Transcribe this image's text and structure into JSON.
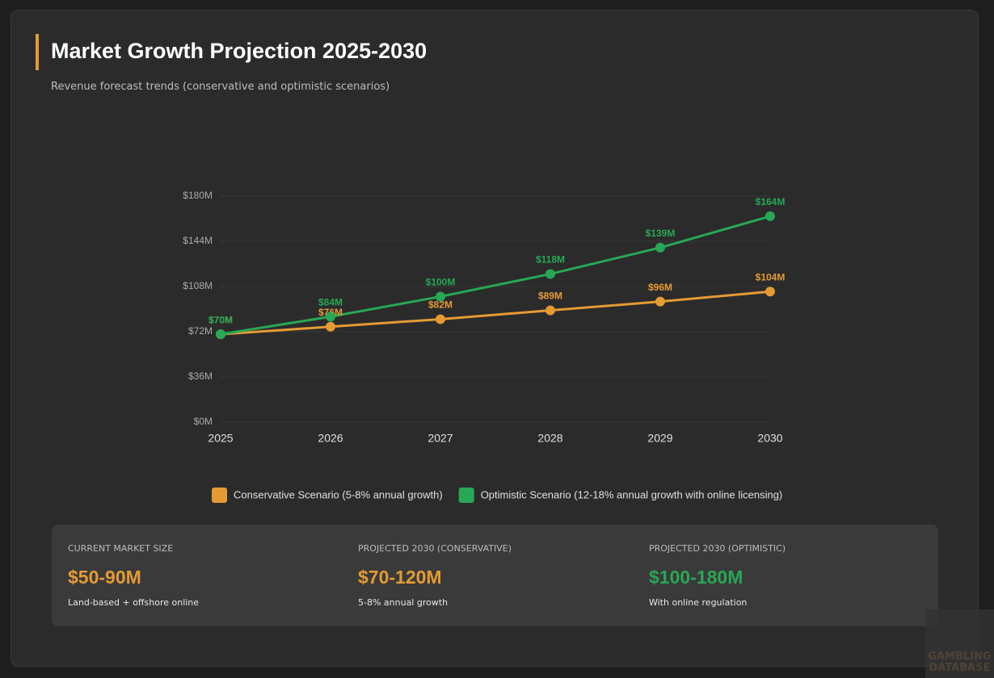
{
  "header": {
    "title": "Market Growth Projection 2025-2030",
    "subtitle": "Revenue forecast trends (conservative and optimistic scenarios)"
  },
  "chart_data": {
    "type": "line",
    "categories": [
      "2025",
      "2026",
      "2027",
      "2028",
      "2029",
      "2030"
    ],
    "series": [
      {
        "name": "Conservative Scenario (5-8% annual growth)",
        "color": "#e49b34",
        "values": [
          70,
          76,
          82,
          89,
          96,
          104
        ],
        "value_labels": [
          "$70M",
          "$76M",
          "$82M",
          "$89M",
          "$96M",
          "$104M"
        ]
      },
      {
        "name": "Optimistic Scenario (12-18% annual growth with online licensing)",
        "color": "#27a855",
        "values": [
          70,
          84,
          100,
          118,
          139,
          164
        ],
        "value_labels": [
          "$70M",
          "$84M",
          "$100M",
          "$118M",
          "$139M",
          "$164M"
        ]
      }
    ],
    "ylim": [
      0,
      180
    ],
    "yticks": [
      {
        "value": 0,
        "label": "$0M"
      },
      {
        "value": 36,
        "label": "$36M"
      },
      {
        "value": 72,
        "label": "$72M"
      },
      {
        "value": 108,
        "label": "$108M"
      },
      {
        "value": 144,
        "label": "$144M"
      },
      {
        "value": 180,
        "label": "$180M"
      }
    ],
    "grid": true
  },
  "stats": [
    {
      "label": "CURRENT MARKET SIZE",
      "value": "$50-90M",
      "note": "Land-based + offshore online"
    },
    {
      "label": "PROJECTED 2030 (CONSERVATIVE)",
      "value": "$70-120M",
      "note": "5-8% annual growth"
    },
    {
      "label": "PROJECTED 2030 (OPTIMISTIC)",
      "value": "$100-180M",
      "note": "With online regulation"
    }
  ],
  "watermark": [
    "GAMBLING",
    "DATABASE"
  ]
}
